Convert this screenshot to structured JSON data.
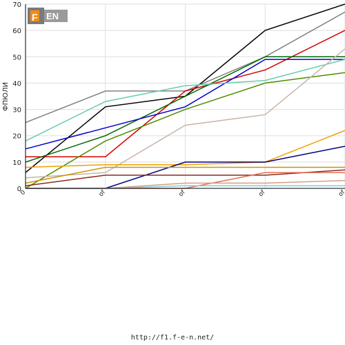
{
  "logo_text": "F1EN",
  "footer_text": "http://f1.f-e-n.net/",
  "chart_data": {
    "type": "line",
    "title": "",
    "ylabel": "ФПЮЛИ",
    "xlabel": "",
    "categories": [
      "0",
      "of",
      "of",
      "of",
      "of"
    ],
    "ylim": [
      0,
      70
    ],
    "yticks": [
      0,
      10,
      20,
      30,
      40,
      50,
      60,
      70
    ],
    "grid": true,
    "series": [
      {
        "color": "#000000",
        "values": [
          6,
          31,
          35,
          60,
          70
        ]
      },
      {
        "color": "#808080",
        "values": [
          25,
          37,
          37,
          50,
          67
        ]
      },
      {
        "color": "#d40000",
        "values": [
          12,
          12,
          37,
          45,
          60
        ]
      },
      {
        "color": "#006600",
        "values": [
          10,
          20,
          35,
          50,
          50
        ]
      },
      {
        "color": "#0000cc",
        "values": [
          15,
          23,
          31,
          49,
          49
        ]
      },
      {
        "color": "#66ccb0",
        "values": [
          18,
          33,
          39,
          41,
          49
        ]
      },
      {
        "color": "#4d8c00",
        "values": [
          0,
          18,
          30,
          40,
          44
        ]
      },
      {
        "color": "#c8b4a8",
        "values": [
          4,
          6,
          24,
          28,
          53
        ]
      },
      {
        "color": "#f0a000",
        "values": [
          8,
          9,
          9,
          10,
          22
        ]
      },
      {
        "color": "#000080",
        "values": [
          0,
          0,
          10,
          10,
          16
        ]
      },
      {
        "color": "#c89600",
        "values": [
          2,
          8,
          8,
          8,
          8
        ]
      },
      {
        "color": "#8b2a1a",
        "values": [
          1,
          5,
          5,
          5,
          7
        ]
      },
      {
        "color": "#e07050",
        "values": [
          0,
          0,
          0,
          6,
          6
        ]
      },
      {
        "color": "#d4a080",
        "values": [
          0,
          0,
          2,
          2,
          3
        ]
      },
      {
        "color": "#80c8e0",
        "values": [
          0,
          0,
          1,
          1,
          1
        ]
      }
    ]
  }
}
